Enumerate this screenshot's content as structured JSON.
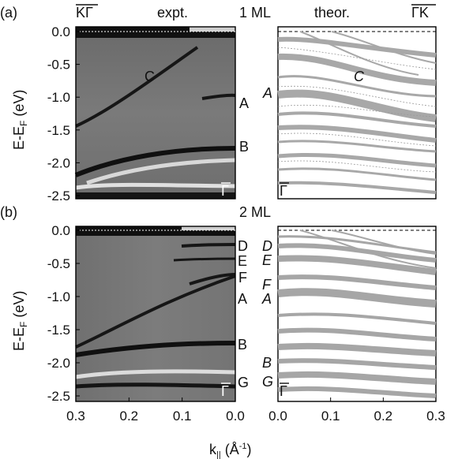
{
  "figure": {
    "panel_a": {
      "tag": "(a)",
      "layer": "1 ML",
      "expt_title": "expt.",
      "theor_title": "theor.",
      "left_direction": "KΓ",
      "right_direction": "ΓK",
      "gamma_expt": "Γ",
      "gamma_theor": "Γ",
      "expt_labels": [
        "C",
        "A",
        "B"
      ],
      "theor_labels": [
        "A",
        "C"
      ]
    },
    "panel_b": {
      "tag": "(b)",
      "layer": "2 ML",
      "gamma_expt": "Γ",
      "gamma_theor": "Γ",
      "expt_labels": [
        "D",
        "E",
        "F",
        "A",
        "B",
        "G"
      ],
      "theor_labels": [
        "D",
        "E",
        "F",
        "A",
        "B",
        "G"
      ]
    },
    "ylabel_main": "E-E",
    "ylabel_sub": "F",
    "ylabel_unit": " (eV)",
    "xlabel_main": "k",
    "xlabel_sub": "||",
    "xlabel_unit": " (Å",
    "xlabel_exp": "-1",
    "xlabel_close": ")"
  },
  "chart_data": [
    {
      "type": "heatmap",
      "panel": "(a) expt.",
      "xlim": [
        0.3,
        0.0
      ],
      "ylim": [
        -2.5,
        0.0
      ],
      "yticks": [
        "0.0",
        "-0.5",
        "-1.0",
        "-1.5",
        "-2.0",
        "-2.5"
      ],
      "bands": [
        {
          "label": "C",
          "k": [
            0.29,
            0.25,
            0.2,
            0.15,
            0.1,
            0.05
          ],
          "E": [
            -1.6,
            -1.35,
            -1.1,
            -0.85,
            -0.55,
            -0.25
          ]
        },
        {
          "label": "A",
          "k": [
            0.05,
            0.03,
            0.0
          ],
          "E": [
            -1.05,
            -1.0,
            -1.0
          ]
        },
        {
          "label": "B",
          "k": [
            0.3,
            0.2,
            0.1,
            0.0
          ],
          "E": [
            -2.1,
            -1.85,
            -1.75,
            -1.75
          ]
        }
      ]
    },
    {
      "type": "line",
      "panel": "(a) theor.",
      "xlim": [
        0.0,
        0.3
      ],
      "ylim": [
        -2.5,
        0.0
      ]
    },
    {
      "type": "heatmap",
      "panel": "(b) expt.",
      "xlim": [
        0.3,
        0.0
      ],
      "ylim": [
        -2.5,
        0.0
      ],
      "yticks": [
        "0.0",
        "-0.5",
        "-1.0",
        "-1.5",
        "-2.0",
        "-2.5"
      ],
      "xticks": [
        "0.3",
        "0.2",
        "0.1",
        "0.0"
      ],
      "bands": [
        {
          "label": "D",
          "k": [
            0.1,
            0.05,
            0.0
          ],
          "E": [
            -0.3,
            -0.25,
            -0.25
          ]
        },
        {
          "label": "E",
          "k": [
            0.1,
            0.05,
            0.0
          ],
          "E": [
            -0.45,
            -0.42,
            -0.42
          ]
        },
        {
          "label": "F",
          "k": [
            0.08,
            0.04,
            0.0
          ],
          "E": [
            -0.75,
            -0.7,
            -0.68
          ]
        },
        {
          "label": "A",
          "k": [
            0.3,
            0.2,
            0.1,
            0.0
          ],
          "E": [
            -1.85,
            -1.4,
            -0.95,
            -0.55
          ]
        },
        {
          "label": "B",
          "k": [
            0.3,
            0.2,
            0.1,
            0.0
          ],
          "E": [
            -1.9,
            -1.75,
            -1.7,
            -1.7
          ]
        },
        {
          "label": "G",
          "k": [
            0.3,
            0.2,
            0.1,
            0.0
          ],
          "E": [
            -2.25,
            -2.3,
            -2.3,
            -2.3
          ]
        }
      ]
    },
    {
      "type": "line",
      "panel": "(b) theor.",
      "xlim": [
        0.0,
        0.3
      ],
      "ylim": [
        -2.5,
        0.0
      ],
      "xticks": [
        "0.0",
        "0.1",
        "0.2",
        "0.3"
      ]
    }
  ]
}
